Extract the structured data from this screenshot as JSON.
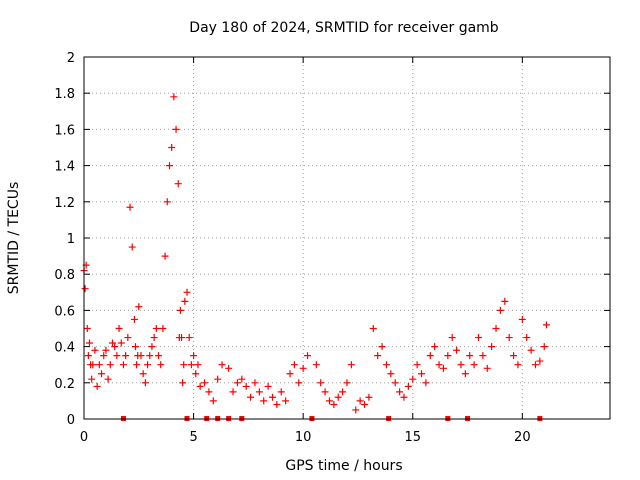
{
  "chart_data": {
    "type": "scatter",
    "title": "Day 180 of 2024, SRMTID for receiver gamb",
    "xlabel": "GPS time / hours",
    "ylabel": "SRMTID / TECUs",
    "xlim": [
      0,
      24
    ],
    "ylim": [
      0,
      2
    ],
    "xticks": [
      0,
      5,
      10,
      15,
      20
    ],
    "xtick_labels": [
      "0",
      "5",
      "10",
      "15",
      "20"
    ],
    "yticks": [
      0,
      0.2,
      0.4,
      0.6,
      0.8,
      1,
      1.2,
      1.4,
      1.6,
      1.8,
      2
    ],
    "ytick_labels": [
      "0",
      "0.2",
      "0.4",
      "0.6",
      "0.8",
      "1",
      "1.2",
      "1.4",
      "1.6",
      "1.8",
      "2"
    ],
    "grid": true,
    "marker": "+",
    "color": "#ff0000",
    "series": [
      {
        "name": "SRMTID",
        "x": [
          0.0,
          0.05,
          0.1,
          0.15,
          0.2,
          0.25,
          0.3,
          0.35,
          0.4,
          0.5,
          0.6,
          0.7,
          0.8,
          0.9,
          1.0,
          1.1,
          1.2,
          1.3,
          1.4,
          1.5,
          1.6,
          1.7,
          1.8,
          1.9,
          2.0,
          2.1,
          2.2,
          2.3,
          2.35,
          2.4,
          2.45,
          2.5,
          2.6,
          2.7,
          2.8,
          2.9,
          3.0,
          3.1,
          3.2,
          3.3,
          3.4,
          3.5,
          3.6,
          3.7,
          3.8,
          3.9,
          4.0,
          4.1,
          4.2,
          4.3,
          4.35,
          4.4,
          4.45,
          4.5,
          4.55,
          4.6,
          4.7,
          4.8,
          4.9,
          5.0,
          5.1,
          5.2,
          5.3,
          5.5,
          5.7,
          5.9,
          6.1,
          6.3,
          6.6,
          6.8,
          7.0,
          7.2,
          7.4,
          7.6,
          7.8,
          8.0,
          8.2,
          8.4,
          8.6,
          8.8,
          9.0,
          9.2,
          9.4,
          9.6,
          9.8,
          10.0,
          10.2,
          10.6,
          10.8,
          11.0,
          11.2,
          11.4,
          11.6,
          11.8,
          12.0,
          12.2,
          12.4,
          12.6,
          12.8,
          13.0,
          13.2,
          13.4,
          13.6,
          13.8,
          14.0,
          14.2,
          14.4,
          14.6,
          14.8,
          15.0,
          15.2,
          15.4,
          15.6,
          15.8,
          16.0,
          16.2,
          16.4,
          16.6,
          16.8,
          17.0,
          17.2,
          17.4,
          17.6,
          17.8,
          18.0,
          18.2,
          18.4,
          18.6,
          18.8,
          19.0,
          19.2,
          19.4,
          19.6,
          19.8,
          20.0,
          20.2,
          20.4,
          20.6,
          20.8,
          21.0,
          21.1
        ],
        "y": [
          0.82,
          0.72,
          0.85,
          0.5,
          0.35,
          0.42,
          0.3,
          0.22,
          0.3,
          0.38,
          0.18,
          0.3,
          0.25,
          0.35,
          0.38,
          0.22,
          0.3,
          0.42,
          0.4,
          0.35,
          0.5,
          0.42,
          0.3,
          0.35,
          0.45,
          1.17,
          0.95,
          0.55,
          0.4,
          0.3,
          0.35,
          0.62,
          0.35,
          0.25,
          0.2,
          0.3,
          0.35,
          0.4,
          0.45,
          0.5,
          0.35,
          0.3,
          0.5,
          0.9,
          1.2,
          1.4,
          1.5,
          1.78,
          1.6,
          1.3,
          0.45,
          0.6,
          0.45,
          0.2,
          0.3,
          0.65,
          0.7,
          0.45,
          0.3,
          0.35,
          0.25,
          0.3,
          0.18,
          0.2,
          0.15,
          0.1,
          0.22,
          0.3,
          0.28,
          0.15,
          0.2,
          0.22,
          0.18,
          0.12,
          0.2,
          0.15,
          0.1,
          0.18,
          0.12,
          0.08,
          0.15,
          0.1,
          0.25,
          0.3,
          0.2,
          0.28,
          0.35,
          0.3,
          0.2,
          0.15,
          0.1,
          0.08,
          0.12,
          0.15,
          0.2,
          0.3,
          0.05,
          0.1,
          0.08,
          0.12,
          0.5,
          0.35,
          0.4,
          0.3,
          0.25,
          0.2,
          0.15,
          0.12,
          0.18,
          0.22,
          0.3,
          0.25,
          0.2,
          0.35,
          0.4,
          0.3,
          0.28,
          0.35,
          0.45,
          0.38,
          0.3,
          0.25,
          0.35,
          0.3,
          0.45,
          0.35,
          0.28,
          0.4,
          0.5,
          0.6,
          0.65,
          0.45,
          0.35,
          0.3,
          0.55,
          0.45,
          0.38,
          0.3,
          0.32,
          0.4,
          0.52
        ],
        "zeros_x": [
          1.8,
          4.7,
          5.6,
          6.1,
          6.6,
          7.2,
          10.4,
          13.9,
          16.6,
          17.5,
          20.8
        ]
      }
    ]
  }
}
